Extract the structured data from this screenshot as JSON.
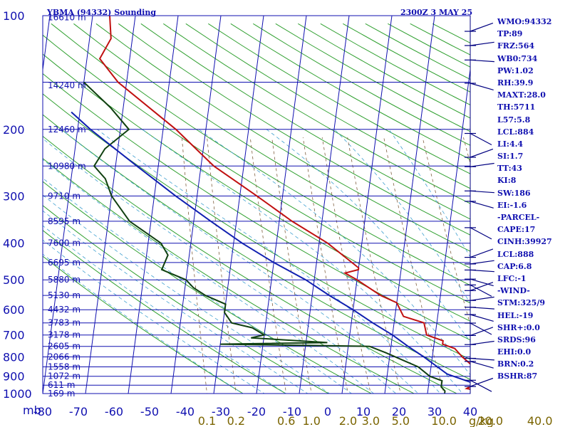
{
  "header": {
    "title": "YBMA (94332) Sounding",
    "datetime": "2300Z  3 MAY 25"
  },
  "indices": [
    "WMO:94332",
    "TP:89",
    "FRZ:564",
    "WB0:734",
    "PW:1.02",
    "RH:39.9",
    "MAXT:28.0",
    "TH:5711",
    "L57:5.8",
    "LCL:884",
    "LI:4.4",
    "SI:1.7",
    "TT:43",
    "KI:8",
    "SW:186",
    "EI:-1.6",
    "-PARCEL-",
    "CAPE:17",
    "CINH:39927",
    "LCL:888",
    "CAP:6.8",
    "LFC:-1",
    "-WIND-",
    "STM:325/9",
    "HEL:-19",
    "SHR+:0.0",
    "SRDS:96",
    "EHI:0.0",
    "BRN:0.2",
    "BSHR:87"
  ],
  "colors": {
    "frame": "#1010b0",
    "isotherm": "#1010b0",
    "dry_adiabat": "#30a030",
    "moist_adiabat": "#40a0d0",
    "mixing_ratio": "#806040",
    "temperature": "#c01010",
    "dewpoint": "#104010",
    "parcel": "#1020b0",
    "barb": "#000080"
  },
  "chart_data": {
    "type": "skew-t",
    "title": "YBMA (94332) Sounding",
    "pressure_unit_label": "mb",
    "pressure_ticks": [
      100,
      200,
      300,
      400,
      500,
      600,
      700,
      800,
      900,
      1000
    ],
    "pressure_tick_labels": [
      "100",
      "200",
      "300",
      "400",
      "500",
      "600",
      "700",
      "800",
      "900",
      "1000"
    ],
    "pressure_range": [
      1000,
      100
    ],
    "temperature_ticks": [
      -80,
      -70,
      -60,
      -50,
      -40,
      -30,
      -20,
      -10,
      0,
      10,
      20,
      30,
      40
    ],
    "temperature_tick_labels": [
      "-80",
      "-70",
      "-60",
      "-50",
      "-40",
      "-30",
      "-20",
      "-10",
      "0",
      "10",
      "20",
      "30",
      "40"
    ],
    "mixing_ratio_labels": [
      "0.1",
      "0.2",
      "0.6",
      "1.0",
      "2.0",
      "3.0",
      "5.0",
      "10.0",
      "20.0",
      "40.0"
    ],
    "mixing_ratio_values": [
      0.1,
      0.2,
      0.6,
      1.0,
      2.0,
      3.0,
      5.0,
      10.0,
      20.0,
      40.0
    ],
    "mixing_ratio_unit": "g/kg",
    "height_labels": [
      {
        "p": 101,
        "text": "16610 m"
      },
      {
        "p": 153,
        "text": "14240 m"
      },
      {
        "p": 200,
        "text": "12460 m"
      },
      {
        "p": 250,
        "text": "10980 m"
      },
      {
        "p": 300,
        "text": "9710 m"
      },
      {
        "p": 350,
        "text": "8595 m"
      },
      {
        "p": 400,
        "text": "7600 m"
      },
      {
        "p": 450,
        "text": "6695 m"
      },
      {
        "p": 500,
        "text": "5880 m"
      },
      {
        "p": 550,
        "text": "5130 m"
      },
      {
        "p": 600,
        "text": "4432 m"
      },
      {
        "p": 650,
        "text": "3783 m"
      },
      {
        "p": 700,
        "text": "3178 m"
      },
      {
        "p": 750,
        "text": "2605 m"
      },
      {
        "p": 800,
        "text": "2066 m"
      },
      {
        "p": 850,
        "text": "1558 m"
      },
      {
        "p": 900,
        "text": "1072 m"
      },
      {
        "p": 950,
        "text": "611 m"
      },
      {
        "p": 1000,
        "text": "169 m"
      }
    ],
    "series": [
      {
        "key": "temperature",
        "points": [
          [
            1008,
            28
          ],
          [
            992,
            24
          ],
          [
            970,
            19
          ],
          [
            925,
            22
          ],
          [
            900,
            20
          ],
          [
            850,
            20
          ],
          [
            800,
            17
          ],
          [
            760,
            15
          ],
          [
            740,
            12
          ],
          [
            725,
            12
          ],
          [
            700,
            8
          ],
          [
            650,
            7
          ],
          [
            625,
            2
          ],
          [
            575,
            0
          ],
          [
            550,
            -4
          ],
          [
            500,
            -10
          ],
          [
            480,
            -13
          ],
          [
            470,
            -10
          ],
          [
            465,
            -10
          ],
          [
            400,
            -18
          ],
          [
            350,
            -27
          ],
          [
            300,
            -36
          ],
          [
            250,
            -47
          ],
          [
            200,
            -57
          ],
          [
            150,
            -72
          ],
          [
            130,
            -77
          ],
          [
            115,
            -75
          ],
          [
            100,
            -76
          ]
        ]
      },
      {
        "key": "dewpoint",
        "points": [
          [
            1008,
            14
          ],
          [
            985,
            14
          ],
          [
            960,
            13
          ],
          [
            925,
            13
          ],
          [
            900,
            10
          ],
          [
            850,
            7
          ],
          [
            780,
            -1
          ],
          [
            750,
            -5
          ],
          [
            740,
            -40
          ],
          [
            733,
            -15
          ],
          [
            712,
            -33
          ],
          [
            700,
            -30
          ],
          [
            670,
            -33
          ],
          [
            650,
            -38
          ],
          [
            610,
            -40
          ],
          [
            580,
            -40
          ],
          [
            550,
            -45
          ],
          [
            525,
            -48
          ],
          [
            500,
            -50
          ],
          [
            470,
            -56
          ],
          [
            430,
            -55
          ],
          [
            400,
            -57
          ],
          [
            350,
            -65
          ],
          [
            300,
            -70
          ],
          [
            270,
            -72
          ],
          [
            250,
            -75
          ],
          [
            225,
            -73
          ],
          [
            200,
            -68
          ],
          [
            175,
            -73
          ],
          [
            150,
            -80
          ]
        ]
      },
      {
        "key": "parcel",
        "points": [
          [
            1008,
            28
          ],
          [
            960,
            23
          ],
          [
            888,
            14
          ],
          [
            850,
            11.5
          ],
          [
            800,
            8
          ],
          [
            750,
            4
          ],
          [
            700,
            0
          ],
          [
            650,
            -5
          ],
          [
            600,
            -10
          ],
          [
            550,
            -16
          ],
          [
            500,
            -22
          ],
          [
            450,
            -30
          ],
          [
            400,
            -38
          ],
          [
            350,
            -46
          ],
          [
            300,
            -55
          ],
          [
            250,
            -65
          ],
          [
            200,
            -77
          ],
          [
            180,
            -82
          ]
        ]
      }
    ],
    "grid": true,
    "wind_barb_pressures": [
      110,
      120,
      131,
      151,
      205,
      237,
      251,
      291,
      310,
      364,
      436,
      454,
      471,
      498,
      516,
      534,
      567,
      591,
      618,
      651,
      702,
      742,
      807,
      822,
      922,
      958
    ]
  }
}
